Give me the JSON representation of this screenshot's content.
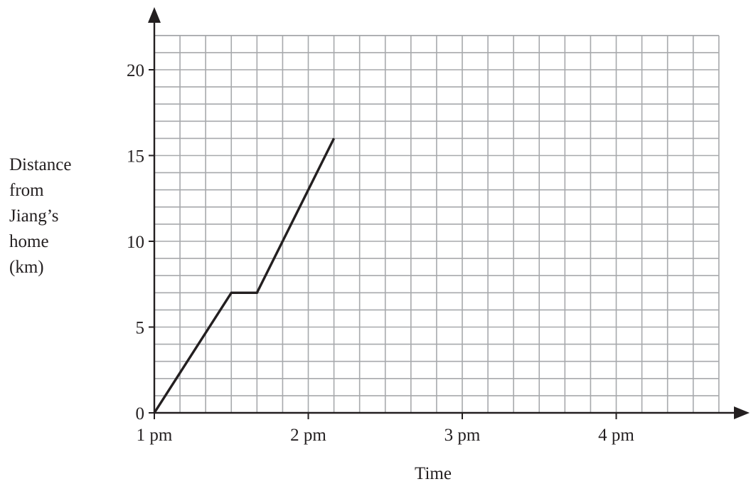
{
  "chart_data": {
    "type": "line",
    "title": "",
    "xlabel": "Time",
    "ylabel_lines": [
      "Distance",
      "from",
      "Jiang’s",
      "home",
      "(km)"
    ],
    "x_unit": "hours",
    "x_ticks": [
      {
        "value": 1,
        "label": "1 pm"
      },
      {
        "value": 2,
        "label": "2 pm"
      },
      {
        "value": 3,
        "label": "3 pm"
      },
      {
        "value": 4,
        "label": "4 pm"
      }
    ],
    "y_ticks": [
      0,
      5,
      10,
      15,
      20
    ],
    "xlim": [
      1,
      4.6667
    ],
    "ylim": [
      0,
      22
    ],
    "grid": {
      "on": true,
      "x_minor_step_minutes": 10,
      "y_minor_step_km": 1
    },
    "series": [
      {
        "x": [
          "1:00 pm",
          "1:30 pm",
          "1:40 pm",
          "2:10 pm"
        ],
        "x_hours": [
          1,
          1.5,
          1.6667,
          2.1667
        ],
        "y": [
          0,
          7,
          7,
          16
        ]
      }
    ],
    "colors": {
      "grid": "#a7a9ac",
      "axis": "#231f20",
      "line": "#231f20"
    }
  }
}
